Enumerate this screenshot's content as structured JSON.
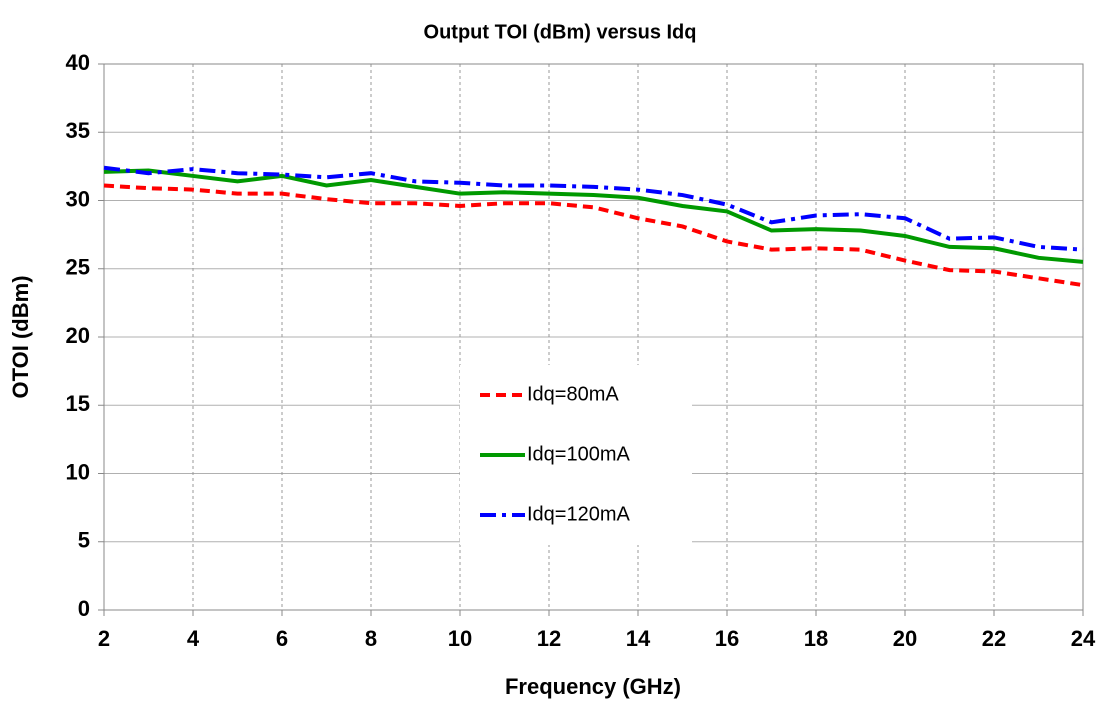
{
  "chart_data": {
    "type": "line",
    "title": "Output TOI (dBm) versus Idq",
    "x_label": "Frequency (GHz)",
    "y_label": "OTOI (dBm)",
    "x": [
      2,
      3,
      4,
      5,
      6,
      7,
      8,
      9,
      10,
      11,
      12,
      13,
      14,
      15,
      16,
      17,
      18,
      19,
      20,
      21,
      22,
      23,
      24
    ],
    "series": [
      {
        "name": "Idq=80mA",
        "color": "#ff0000",
        "dash": "dashed",
        "values": [
          31.1,
          30.9,
          30.8,
          30.5,
          30.5,
          30.1,
          29.8,
          29.8,
          29.6,
          29.8,
          29.8,
          29.5,
          28.7,
          28.1,
          27.0,
          26.4,
          26.5,
          26.4,
          25.6,
          24.9,
          24.8,
          24.3,
          23.8
        ]
      },
      {
        "name": "Idq=100mA",
        "color": "#009900",
        "dash": "solid",
        "values": [
          32.1,
          32.2,
          31.8,
          31.4,
          31.8,
          31.1,
          31.5,
          31.0,
          30.5,
          30.6,
          30.5,
          30.4,
          30.2,
          29.6,
          29.2,
          27.8,
          27.9,
          27.8,
          27.4,
          26.6,
          26.5,
          25.8,
          25.5
        ]
      },
      {
        "name": "Idq=120mA",
        "color": "#0000ff",
        "dash": "dashdot",
        "values": [
          32.4,
          32.0,
          32.3,
          32.0,
          31.9,
          31.7,
          32.0,
          31.4,
          31.3,
          31.1,
          31.1,
          31.0,
          30.8,
          30.4,
          29.7,
          28.4,
          28.9,
          29.0,
          28.7,
          27.2,
          27.3,
          26.6,
          26.4
        ]
      }
    ],
    "xlim": [
      2,
      24
    ],
    "xticks": [
      2,
      4,
      6,
      8,
      10,
      12,
      14,
      16,
      18,
      20,
      22,
      24
    ],
    "ylim": [
      0,
      40
    ],
    "yticks": [
      0,
      5,
      10,
      15,
      20,
      25,
      30,
      35,
      40
    ],
    "grid": true,
    "legend": "center"
  }
}
